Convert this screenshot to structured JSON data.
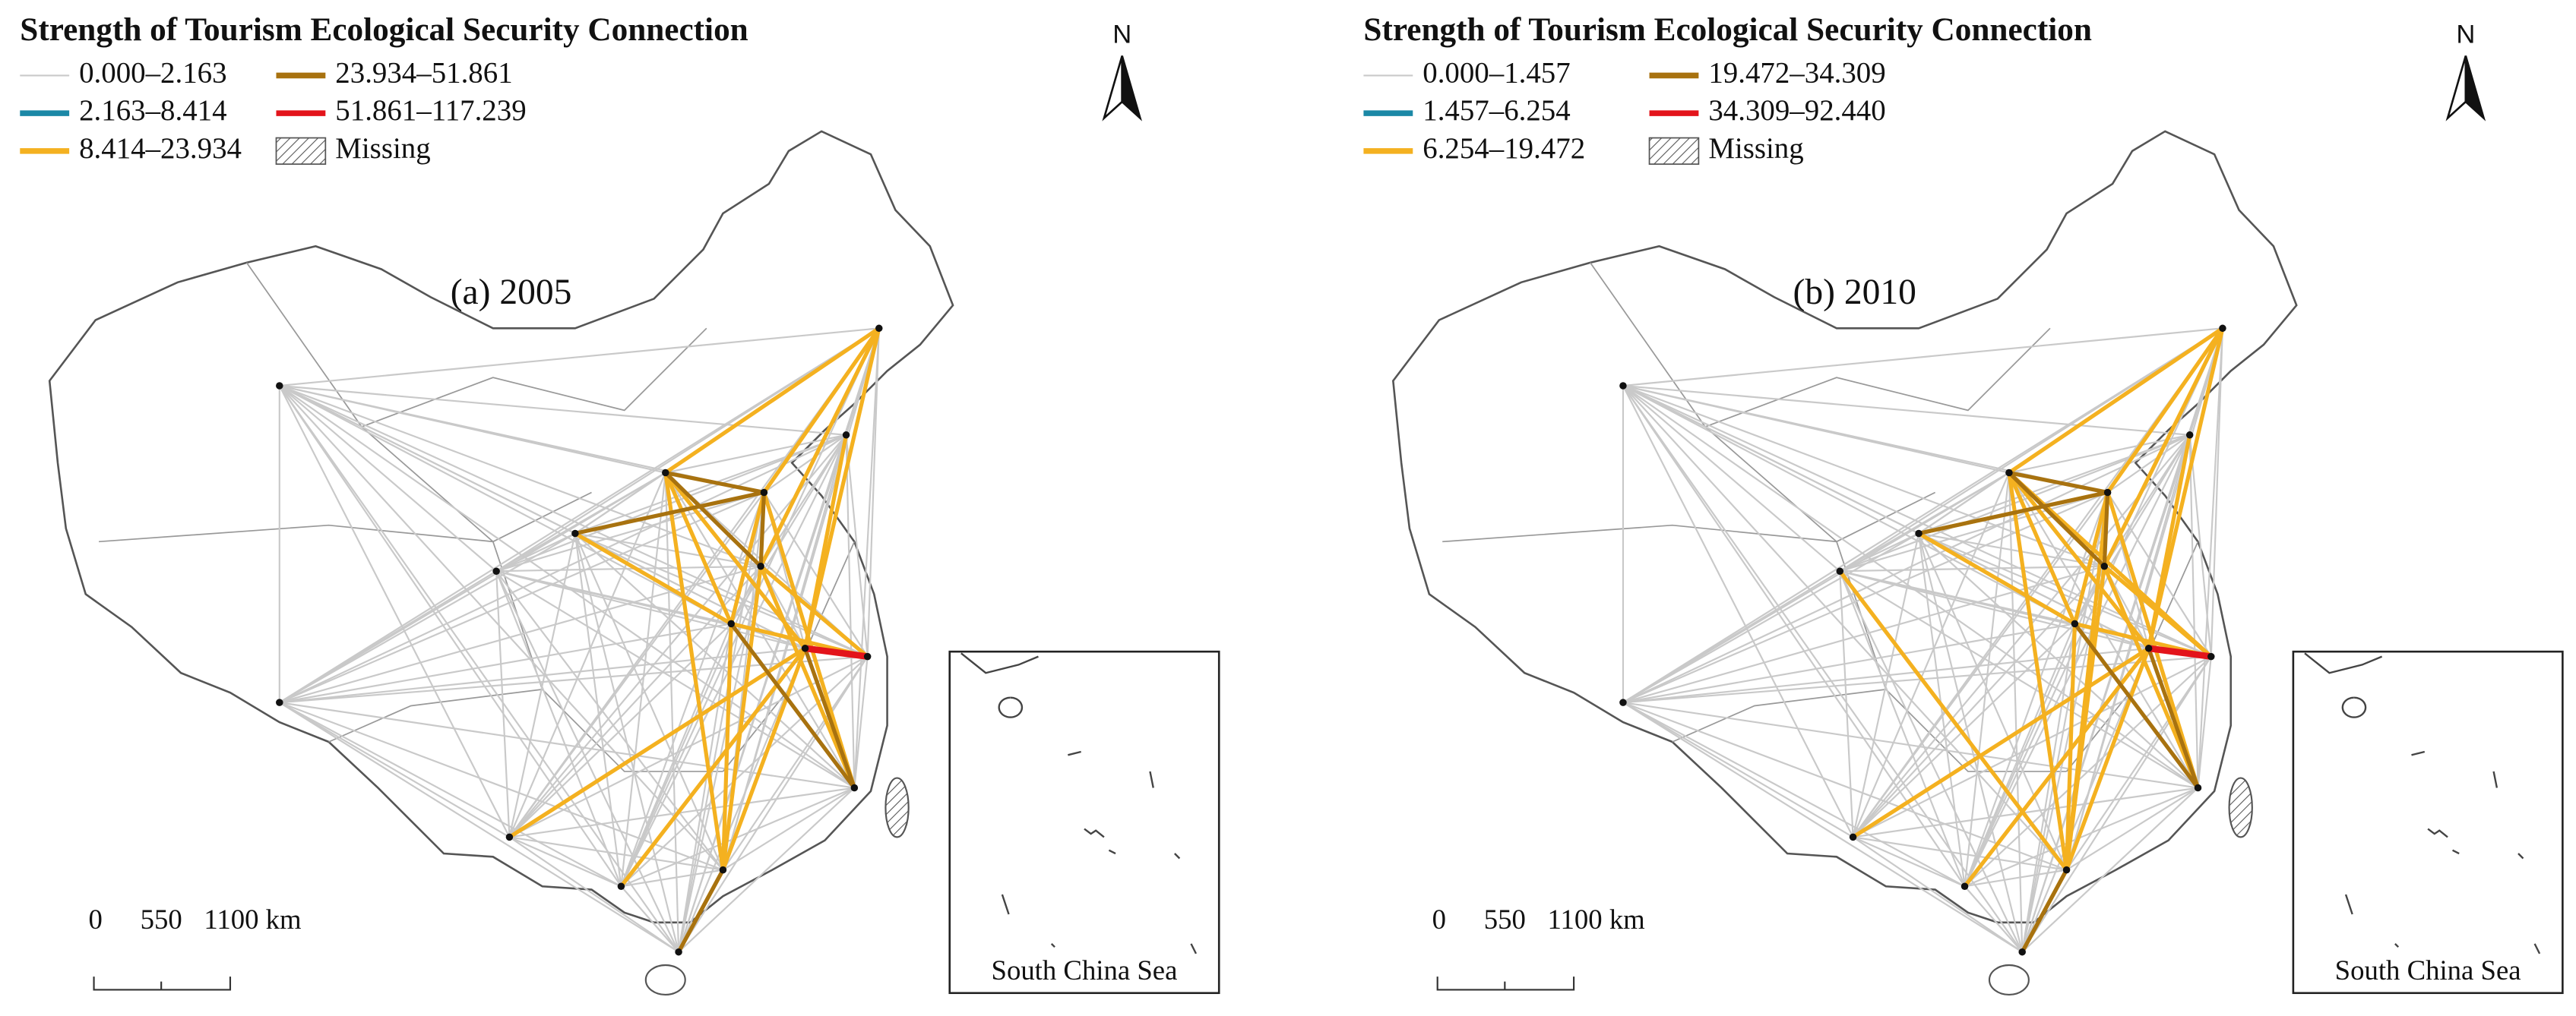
{
  "panels": [
    {
      "title": "Strength of Tourism Ecological Security Connection",
      "legend": [
        {
          "label": "0.000–2.163",
          "color": "#c9c9c9"
        },
        {
          "label": "2.163–8.414",
          "color": "#1b88a6"
        },
        {
          "label": "8.414–23.934",
          "color": "#f4b120"
        },
        {
          "label": "23.934–51.861",
          "color": "#a8720f"
        },
        {
          "label": "51.861–117.239",
          "color": "#e3141b"
        },
        {
          "label": "Missing"
        }
      ],
      "north": "N",
      "label": "(a) 2005",
      "scale": [
        "0",
        "550",
        "1100 km"
      ],
      "inset": "South China Sea"
    },
    {
      "title": "Strength of Tourism Ecological Security Connection",
      "legend": [
        {
          "label": "0.000–1.457",
          "color": "#c9c9c9"
        },
        {
          "label": "1.457–6.254",
          "color": "#1b88a6"
        },
        {
          "label": "6.254–19.472",
          "color": "#f4b120"
        },
        {
          "label": "19.472–34.309",
          "color": "#a8720f"
        },
        {
          "label": "34.309–92.440",
          "color": "#e3141b"
        },
        {
          "label": "Missing"
        }
      ],
      "north": "N",
      "label": "(b) 2010",
      "scale": [
        "0",
        "550",
        "1100 km"
      ],
      "inset": "South China Sea"
    }
  ]
}
